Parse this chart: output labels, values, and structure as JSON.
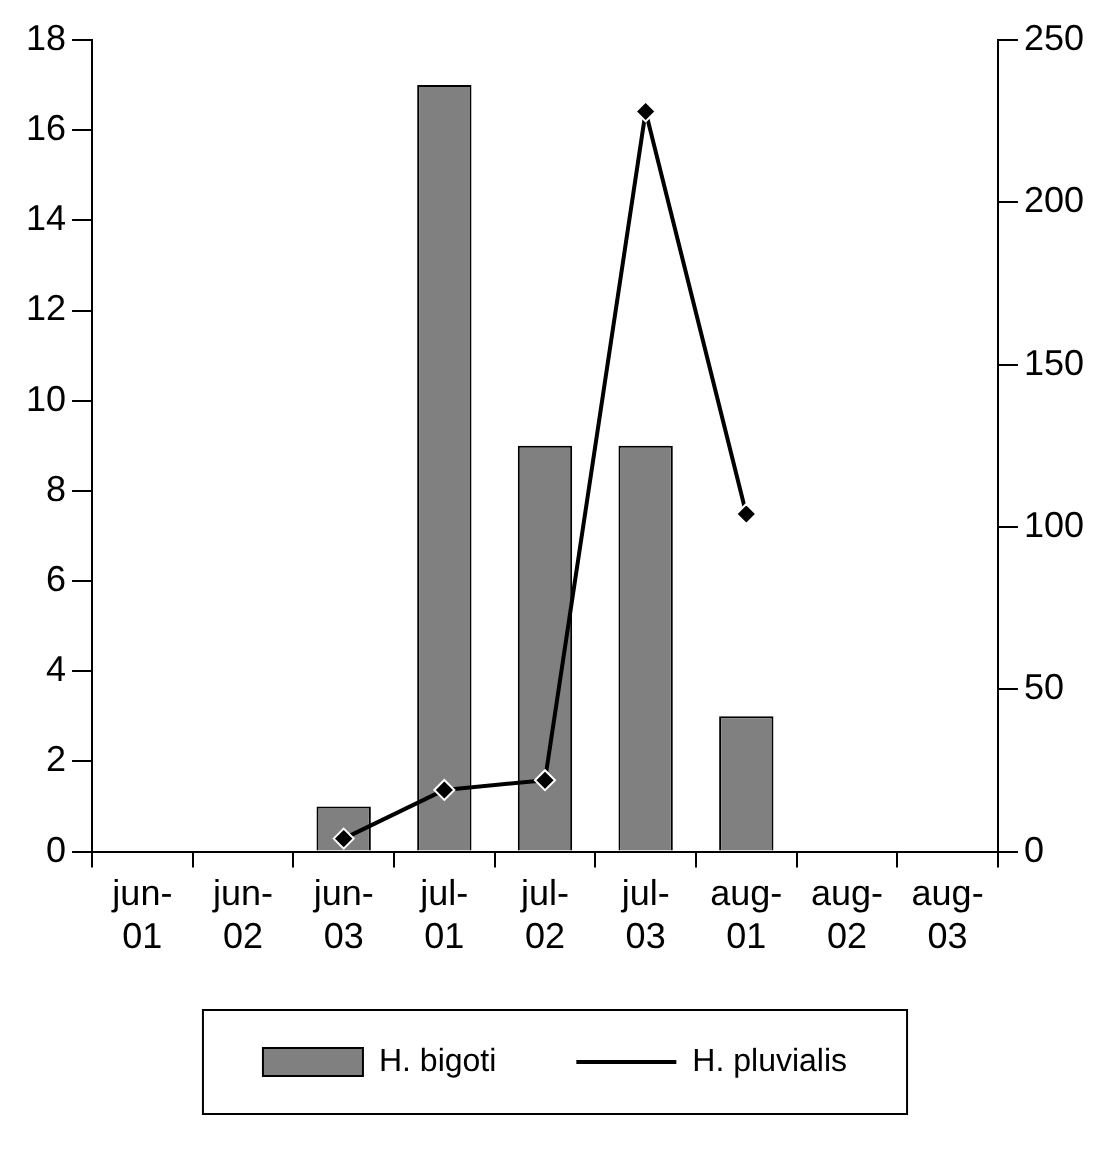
{
  "chart_data": {
    "type": "bar",
    "categories": [
      "jun-01",
      "jun-02",
      "jun-03",
      "jul-01",
      "jul-02",
      "jul-03",
      "aug-01",
      "aug-02",
      "aug-03"
    ],
    "series": [
      {
        "name": "H. bigoti",
        "color": "#808080",
        "values": [
          0,
          0,
          1,
          17,
          9,
          9,
          3,
          0,
          0
        ]
      },
      {
        "name": "H. pluvialis",
        "type": "line",
        "axis": "y2",
        "color": "#000000",
        "marker": "diamond",
        "values": [
          null,
          null,
          4,
          19,
          22,
          228,
          104,
          null,
          null
        ]
      }
    ],
    "ylim": [
      0,
      18
    ],
    "yticks": [
      0,
      2,
      4,
      6,
      8,
      10,
      12,
      14,
      16,
      18
    ],
    "y2lim": [
      0,
      250
    ],
    "y2ticks": [
      0,
      50,
      100,
      150,
      200,
      250
    ],
    "grid": false,
    "legend": "bottom"
  }
}
